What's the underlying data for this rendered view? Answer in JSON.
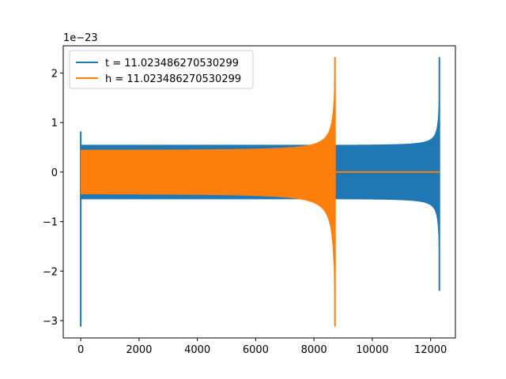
{
  "chart_data": {
    "type": "line",
    "title": "",
    "xlabel": "",
    "ylabel": "",
    "y_offset_label": "1e−23",
    "xlim": [
      -600,
      12850
    ],
    "ylim": [
      -3.35,
      2.55
    ],
    "x_ticks": [
      0,
      2000,
      4000,
      6000,
      8000,
      10000,
      12000
    ],
    "x_tick_labels": [
      "0",
      "2000",
      "4000",
      "6000",
      "8000",
      "10000",
      "12000"
    ],
    "y_ticks": [
      -3,
      -2,
      -1,
      0,
      1,
      2
    ],
    "y_tick_labels": [
      "−3",
      "−2",
      "−1",
      "0",
      "1",
      "2"
    ],
    "grid": false,
    "legend_position": "top-left",
    "series": [
      {
        "name": "t = 11.023486270530299",
        "color": "#1f77b4",
        "x_end": 12300,
        "spike_start_upper": 0.82,
        "spike_start_lower": -3.12,
        "envelope_start": 0.55,
        "envelope_split_x": 8720,
        "envelope_mid": 0.55,
        "envelope_end_upper": 2.32,
        "envelope_end_lower": -2.4
      },
      {
        "name": "h = 11.023486270530299",
        "color": "#ff7f0e",
        "x_end": 12300,
        "x_merge": 8720,
        "envelope_start": 0.45,
        "envelope_end_upper": 2.32,
        "envelope_end_lower": -3.12,
        "tail_value": 0.0
      }
    ]
  }
}
